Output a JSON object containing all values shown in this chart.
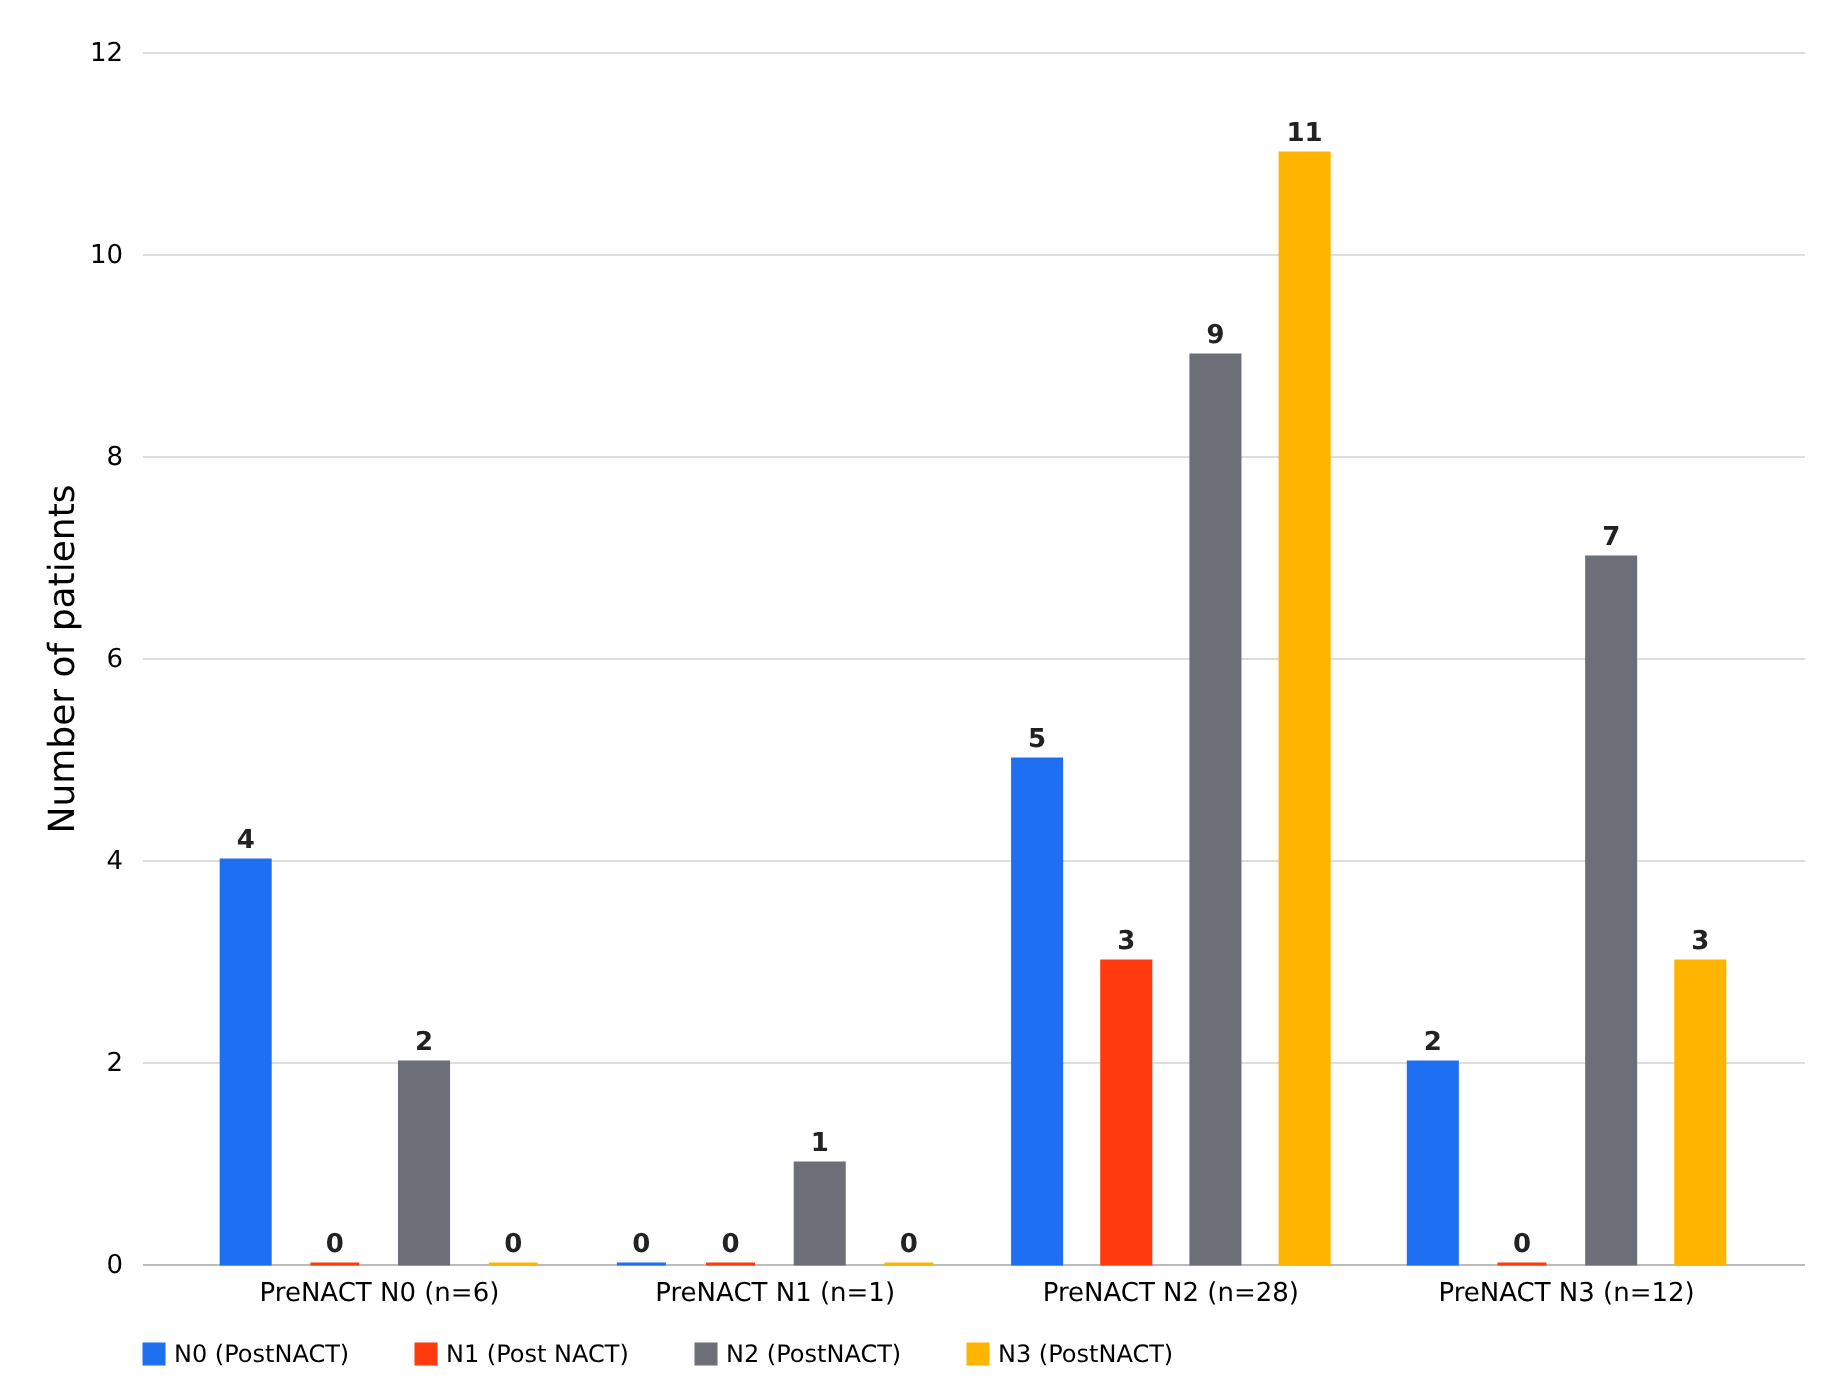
{
  "chart_data": {
    "type": "bar",
    "ylabel": "Number of patients",
    "categories": [
      "PreNACT N0 (n=6)",
      "PreNACT N1 (n=1)",
      "PreNACT N2 (n=28)",
      "PreNACT N3 (n=12)"
    ],
    "series": [
      {
        "name": "N0 (PostNACT)",
        "color": "#1f6ff2",
        "values": [
          4,
          0,
          5,
          2
        ]
      },
      {
        "name": "N1 (Post NACT)",
        "color": "#ff3a0f",
        "values": [
          0,
          0,
          3,
          0
        ]
      },
      {
        "name": "N2 (PostNACT)",
        "color": "#6d6f78",
        "values": [
          2,
          1,
          9,
          7
        ]
      },
      {
        "name": "N3 (PostNACT)",
        "color": "#ffb400",
        "values": [
          0,
          0,
          11,
          3
        ]
      }
    ],
    "ylim": [
      0,
      12
    ],
    "yticks": [
      0,
      2,
      4,
      6,
      8,
      10,
      12
    ],
    "grid": "y",
    "legend": "bottom",
    "data_labels": true
  }
}
